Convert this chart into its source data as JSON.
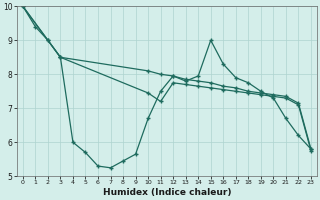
{
  "xlabel": "Humidex (Indice chaleur)",
  "xlim": [
    -0.5,
    23.5
  ],
  "ylim": [
    5,
    10
  ],
  "bg_color": "#d4eeea",
  "grid_color": "#aed4cf",
  "line_color": "#1e6b5e",
  "line1_x": [
    0,
    1,
    2,
    3,
    4,
    5,
    6,
    7,
    8,
    9,
    10,
    11,
    12,
    13,
    14,
    15,
    16,
    17,
    18,
    19,
    20,
    21,
    22,
    23
  ],
  "line1_y": [
    10.0,
    9.4,
    9.0,
    8.5,
    6.0,
    5.7,
    5.3,
    5.25,
    5.45,
    5.65,
    6.7,
    7.5,
    7.95,
    7.8,
    7.95,
    9.0,
    8.3,
    7.9,
    7.75,
    7.5,
    7.3,
    6.7,
    6.2,
    5.8
  ],
  "line2_x": [
    0,
    2,
    3,
    10,
    11,
    12,
    13,
    14,
    15,
    16,
    17,
    18,
    19,
    20,
    21,
    22,
    23
  ],
  "line2_y": [
    10.0,
    9.0,
    8.5,
    8.1,
    8.0,
    7.95,
    7.85,
    7.8,
    7.75,
    7.65,
    7.6,
    7.5,
    7.45,
    7.4,
    7.35,
    7.15,
    5.8
  ],
  "line3_x": [
    0,
    3,
    10,
    11,
    12,
    13,
    14,
    15,
    16,
    17,
    18,
    19,
    20,
    21,
    22,
    23
  ],
  "line3_y": [
    10.0,
    8.5,
    7.45,
    7.2,
    7.75,
    7.7,
    7.65,
    7.6,
    7.55,
    7.5,
    7.45,
    7.4,
    7.35,
    7.3,
    7.1,
    5.75
  ]
}
